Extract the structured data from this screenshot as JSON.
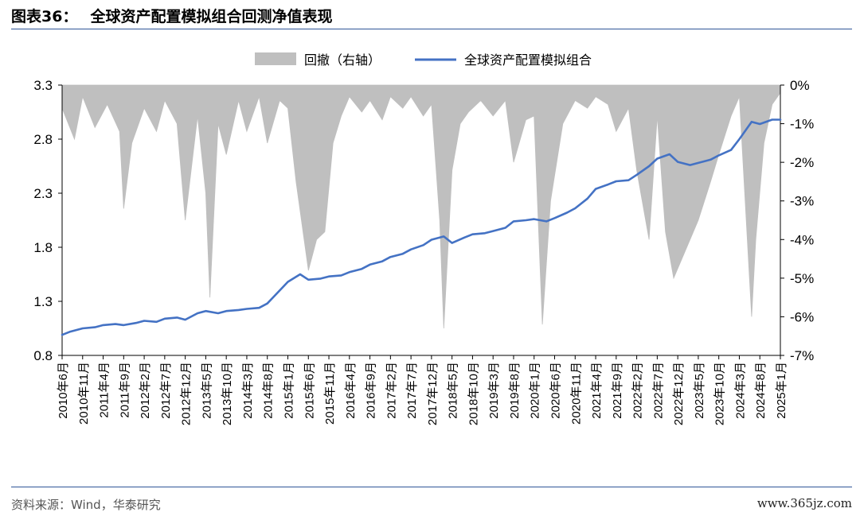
{
  "figure": {
    "label": "图表36：",
    "title": "全球资产配置模拟组合回测净值表现"
  },
  "source": "资料来源：Wind，华泰研究",
  "watermark": "www.365jz.com",
  "colors": {
    "line": "#4472c4",
    "area": "#bfbfbf",
    "rule": "#2f5597"
  },
  "chart_data": {
    "type": "line",
    "legend": {
      "position": "top-center",
      "items": [
        "回撤（右轴）",
        "全球资产配置模拟组合"
      ]
    },
    "left_axis": {
      "ticks": [
        "3.3",
        "2.8",
        "2.3",
        "1.8",
        "1.3",
        "0.8"
      ],
      "range": [
        0.8,
        3.3
      ]
    },
    "right_axis": {
      "ticks": [
        "0%",
        "-1%",
        "-2%",
        "-3%",
        "-4%",
        "-5%",
        "-6%",
        "-7%"
      ],
      "range": [
        -7,
        0
      ]
    },
    "x_ticks": [
      "2010年6月",
      "2010年11月",
      "2011年4月",
      "2011年9月",
      "2012年2月",
      "2012年7月",
      "2012年12月",
      "2013年5月",
      "2013年10月",
      "2014年3月",
      "2014年8月",
      "2015年1月",
      "2015年6月",
      "2015年11月",
      "2016年4月",
      "2016年9月",
      "2017年2月",
      "2017年7月",
      "2017年12月",
      "2018年5月",
      "2018年10月",
      "2019年3月",
      "2019年8月",
      "2020年1月",
      "2020年6月",
      "2020年11月",
      "2021年4月",
      "2021年9月",
      "2022年2月",
      "2022年7月",
      "2022年12月",
      "2023年5月",
      "2023年10月",
      "2024年3月",
      "2024年8月",
      "2025年1月"
    ],
    "series": [
      {
        "name": "全球资产配置模拟组合",
        "axis": "left",
        "kind": "line",
        "x": [
          "2010-06",
          "2010-08",
          "2010-11",
          "2011-02",
          "2011-04",
          "2011-07",
          "2011-09",
          "2011-12",
          "2012-02",
          "2012-05",
          "2012-07",
          "2012-10",
          "2012-12",
          "2013-03",
          "2013-05",
          "2013-08",
          "2013-10",
          "2014-01",
          "2014-03",
          "2014-06",
          "2014-08",
          "2014-11",
          "2015-01",
          "2015-04",
          "2015-06",
          "2015-09",
          "2015-11",
          "2016-02",
          "2016-04",
          "2016-07",
          "2016-09",
          "2016-12",
          "2017-02",
          "2017-05",
          "2017-07",
          "2017-10",
          "2017-12",
          "2018-03",
          "2018-05",
          "2018-08",
          "2018-10",
          "2019-01",
          "2019-03",
          "2019-06",
          "2019-08",
          "2019-11",
          "2020-01",
          "2020-04",
          "2020-06",
          "2020-09",
          "2020-11",
          "2021-02",
          "2021-04",
          "2021-07",
          "2021-09",
          "2021-12",
          "2022-02",
          "2022-05",
          "2022-07",
          "2022-10",
          "2022-12",
          "2023-03",
          "2023-05",
          "2023-08",
          "2023-10",
          "2024-01",
          "2024-03",
          "2024-06",
          "2024-08",
          "2024-11",
          "2025-01"
        ],
        "y": [
          0.99,
          1.02,
          1.05,
          1.06,
          1.08,
          1.09,
          1.08,
          1.1,
          1.12,
          1.11,
          1.14,
          1.15,
          1.13,
          1.19,
          1.21,
          1.19,
          1.21,
          1.22,
          1.23,
          1.24,
          1.28,
          1.4,
          1.48,
          1.55,
          1.5,
          1.51,
          1.53,
          1.54,
          1.57,
          1.6,
          1.64,
          1.67,
          1.71,
          1.74,
          1.78,
          1.82,
          1.87,
          1.9,
          1.84,
          1.89,
          1.92,
          1.93,
          1.95,
          1.98,
          2.04,
          2.05,
          2.06,
          2.04,
          2.07,
          2.12,
          2.16,
          2.25,
          2.34,
          2.38,
          2.41,
          2.42,
          2.47,
          2.55,
          2.62,
          2.66,
          2.59,
          2.56,
          2.58,
          2.61,
          2.65,
          2.7,
          2.8,
          2.96,
          2.94,
          2.98,
          2.98
        ]
      },
      {
        "name": "回撤（右轴）",
        "axis": "right",
        "kind": "area",
        "x": [
          "2010-06",
          "2010-09",
          "2010-11",
          "2011-02",
          "2011-05",
          "2011-08",
          "2011-09",
          "2011-11",
          "2012-02",
          "2012-05",
          "2012-07",
          "2012-10",
          "2012-12",
          "2013-03",
          "2013-05",
          "2013-06",
          "2013-08",
          "2013-10",
          "2014-01",
          "2014-03",
          "2014-06",
          "2014-08",
          "2014-11",
          "2015-01",
          "2015-03",
          "2015-06",
          "2015-08",
          "2015-10",
          "2015-12",
          "2016-02",
          "2016-04",
          "2016-07",
          "2016-09",
          "2016-12",
          "2017-02",
          "2017-05",
          "2017-07",
          "2017-10",
          "2017-12",
          "2018-02",
          "2018-03",
          "2018-05",
          "2018-07",
          "2018-09",
          "2018-12",
          "2019-03",
          "2019-06",
          "2019-08",
          "2019-11",
          "2020-01",
          "2020-03",
          "2020-05",
          "2020-08",
          "2020-11",
          "2021-02",
          "2021-04",
          "2021-07",
          "2021-09",
          "2021-12",
          "2022-02",
          "2022-05",
          "2022-07",
          "2022-09",
          "2022-11",
          "2023-01",
          "2023-03",
          "2023-05",
          "2023-08",
          "2023-10",
          "2024-01",
          "2024-03",
          "2024-06",
          "2024-07",
          "2024-09",
          "2024-11",
          "2025-01"
        ],
        "y": [
          -0.6,
          -1.4,
          -0.3,
          -1.1,
          -0.5,
          -1.2,
          -3.2,
          -1.5,
          -0.6,
          -1.2,
          -0.4,
          -1.0,
          -3.5,
          -0.8,
          -2.8,
          -5.5,
          -1.0,
          -1.8,
          -0.4,
          -1.2,
          -0.3,
          -1.5,
          -0.4,
          -0.6,
          -2.5,
          -4.8,
          -4.0,
          -3.8,
          -1.5,
          -0.8,
          -0.3,
          -0.7,
          -0.4,
          -0.9,
          -0.3,
          -0.6,
          -0.3,
          -0.8,
          -0.5,
          -3.5,
          -6.3,
          -2.2,
          -1.0,
          -0.7,
          -0.4,
          -0.8,
          -0.4,
          -2.0,
          -0.9,
          -0.8,
          -6.2,
          -3.0,
          -1.0,
          -0.4,
          -0.6,
          -0.3,
          -0.5,
          -1.2,
          -0.6,
          -2.2,
          -4.0,
          -0.8,
          -3.8,
          -5.0,
          -4.5,
          -4.0,
          -3.5,
          -2.5,
          -1.8,
          -0.8,
          -0.3,
          -6.0,
          -4.0,
          -1.5,
          -0.5,
          -0.2
        ]
      }
    ]
  }
}
